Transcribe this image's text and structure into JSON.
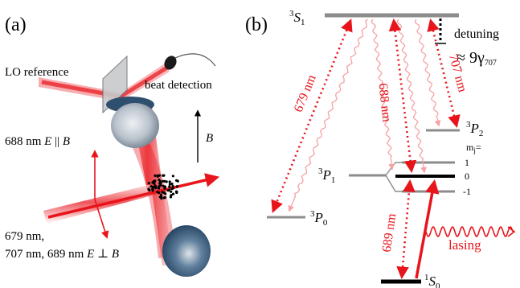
{
  "panel_a": {
    "label": "(a)",
    "lo_reference": "LO reference",
    "beat_detection": "beat detection",
    "b_field": "B",
    "beam_688_prefix": "688 nm ",
    "beam_688_E": "E",
    "beam_688_rel": " || ",
    "beam_688_B": "B",
    "beam_679_line1": "679 nm,",
    "beam_679_line2": "707 nm, 689 nm ",
    "beam_679_E": "E",
    "beam_679_rel": " ⊥ ",
    "beam_679_B": "B"
  },
  "panel_b": {
    "label": "(b)",
    "level_3S1": {
      "sup": "3",
      "main": "S",
      "sub": "1"
    },
    "level_3P2": {
      "sup": "3",
      "main": "P",
      "sub": "2"
    },
    "level_3P1": {
      "sup": "3",
      "main": "P",
      "sub": "1"
    },
    "level_3P0": {
      "sup": "3",
      "main": "P",
      "sub": "0"
    },
    "level_1S0": {
      "sup": "1",
      "main": "S",
      "sub": "0"
    },
    "mj_label": "m",
    "mj_sub": "j",
    "mj_eq": "=",
    "mj_values": [
      "1",
      "0",
      "-1"
    ],
    "detuning": "detuning",
    "detuning_value": "≈ 9γ",
    "detuning_sub": "707",
    "arrow_679": "679 nm",
    "arrow_688": "688 nm",
    "arrow_707": "707 nm",
    "arrow_689": "689 nm",
    "lasing": "lasing"
  },
  "colors": {
    "red": "#e8141b",
    "light_red": "#f4a3a6",
    "level_grey": "#8c8c8c",
    "black": "#000000"
  }
}
